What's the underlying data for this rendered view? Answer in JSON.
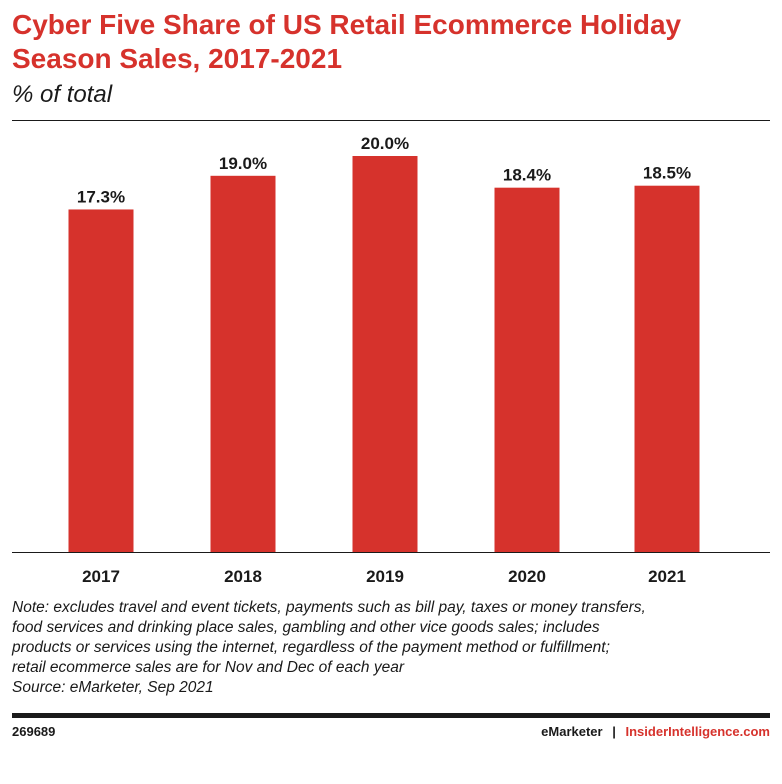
{
  "title": "Cyber Five Share of US Retail Ecommerce Holiday Season Sales, 2017-2021",
  "subtitle": "% of total",
  "chart_data": {
    "type": "bar",
    "categories": [
      "2017",
      "2018",
      "2019",
      "2020",
      "2021"
    ],
    "values": [
      17.3,
      19.0,
      20.0,
      18.4,
      18.5
    ],
    "data_labels": [
      "17.3%",
      "19.0%",
      "20.0%",
      "18.4%",
      "18.5%"
    ],
    "ylim": [
      0,
      20
    ],
    "grid": false,
    "legend": "none",
    "bar_color": "#d6322c"
  },
  "note": {
    "lines": [
      "Note: excludes travel and event tickets, payments such as bill pay, taxes or money transfers,",
      "food services and drinking place sales, gambling and other vice goods sales; includes",
      "products or services using the internet, regardless of the payment method or fulfillment;",
      "retail ecommerce sales are for Nov and Dec of each year"
    ],
    "source": "Source: eMarketer, Sep 2021"
  },
  "footer": {
    "chart_id": "269689",
    "brand": "eMarketer",
    "separator": "|",
    "site": "InsiderIntelligence.com"
  }
}
